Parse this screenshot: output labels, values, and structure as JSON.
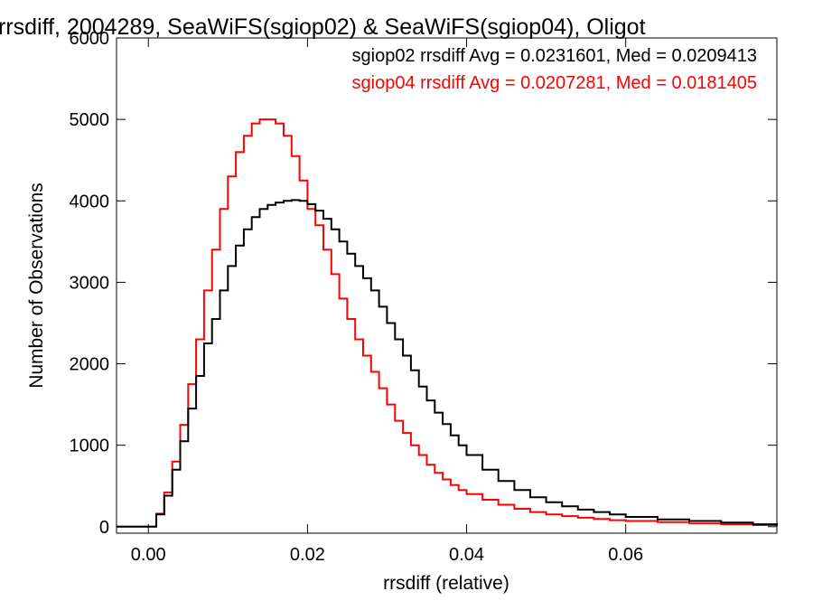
{
  "chart_data": {
    "type": "line",
    "title": "rrsdiff, 2004289, SeaWiFS(sgiop02) & SeaWiFS(sgiop04), Oligot",
    "xlabel": "rrsdiff (relative)",
    "ylabel": "Number of Observations",
    "xlim": [
      -0.004,
      0.079
    ],
    "ylim": [
      -80,
      6000
    ],
    "x_ticks": [
      "0.00",
      "0.02",
      "0.04",
      "0.06"
    ],
    "x_tick_values": [
      0.0,
      0.02,
      0.04,
      0.06
    ],
    "y_ticks": [
      "0",
      "1000",
      "2000",
      "3000",
      "4000",
      "5000",
      "6000"
    ],
    "y_tick_values": [
      0,
      1000,
      2000,
      3000,
      4000,
      5000,
      6000
    ],
    "grid": false,
    "step_plot": true,
    "legend_position": "top-right",
    "series": [
      {
        "name": "sgiop02",
        "label": "sgiop02 rrsdiff Avg = 0.0231601, Med = 0.0209413",
        "color": "#000000",
        "x": [
          -0.004,
          0.0,
          0.001,
          0.002,
          0.003,
          0.004,
          0.005,
          0.006,
          0.007,
          0.008,
          0.009,
          0.01,
          0.011,
          0.012,
          0.013,
          0.014,
          0.015,
          0.016,
          0.017,
          0.018,
          0.019,
          0.02,
          0.021,
          0.022,
          0.023,
          0.024,
          0.025,
          0.026,
          0.027,
          0.028,
          0.029,
          0.03,
          0.031,
          0.032,
          0.033,
          0.034,
          0.035,
          0.036,
          0.037,
          0.038,
          0.039,
          0.04,
          0.042,
          0.044,
          0.046,
          0.048,
          0.05,
          0.052,
          0.054,
          0.056,
          0.058,
          0.06,
          0.064,
          0.068,
          0.072,
          0.076,
          0.079
        ],
        "y": [
          0,
          0,
          150,
          380,
          700,
          1050,
          1450,
          1850,
          2250,
          2550,
          2900,
          3200,
          3450,
          3650,
          3800,
          3900,
          3950,
          3980,
          4000,
          4010,
          4000,
          3960,
          3880,
          3780,
          3650,
          3500,
          3350,
          3200,
          3050,
          2900,
          2700,
          2500,
          2300,
          2100,
          1920,
          1720,
          1550,
          1400,
          1260,
          1120,
          1000,
          880,
          700,
          560,
          450,
          360,
          300,
          250,
          210,
          180,
          150,
          120,
          90,
          70,
          50,
          30,
          10
        ]
      },
      {
        "name": "sgiop04",
        "label": "sgiop04 rrsdiff Avg = 0.0207281, Med = 0.0181405",
        "color": "#ff0000",
        "x": [
          -0.004,
          0.0,
          0.001,
          0.002,
          0.003,
          0.004,
          0.005,
          0.006,
          0.007,
          0.008,
          0.009,
          0.01,
          0.011,
          0.012,
          0.013,
          0.014,
          0.015,
          0.016,
          0.017,
          0.018,
          0.019,
          0.02,
          0.021,
          0.022,
          0.023,
          0.024,
          0.025,
          0.026,
          0.027,
          0.028,
          0.029,
          0.03,
          0.031,
          0.032,
          0.033,
          0.034,
          0.035,
          0.036,
          0.037,
          0.038,
          0.039,
          0.04,
          0.042,
          0.044,
          0.046,
          0.048,
          0.05,
          0.052,
          0.054,
          0.056,
          0.058,
          0.06,
          0.064,
          0.068,
          0.072,
          0.076,
          0.079
        ],
        "y": [
          0,
          0,
          160,
          420,
          800,
          1250,
          1750,
          2300,
          2900,
          3400,
          3900,
          4300,
          4600,
          4800,
          4950,
          5000,
          5000,
          4950,
          4800,
          4550,
          4250,
          3900,
          3700,
          3400,
          3100,
          2800,
          2550,
          2300,
          2100,
          1900,
          1700,
          1500,
          1300,
          1150,
          1000,
          880,
          760,
          660,
          580,
          510,
          450,
          400,
          330,
          270,
          220,
          180,
          150,
          130,
          110,
          95,
          80,
          70,
          55,
          40,
          30,
          20,
          10
        ]
      }
    ]
  }
}
